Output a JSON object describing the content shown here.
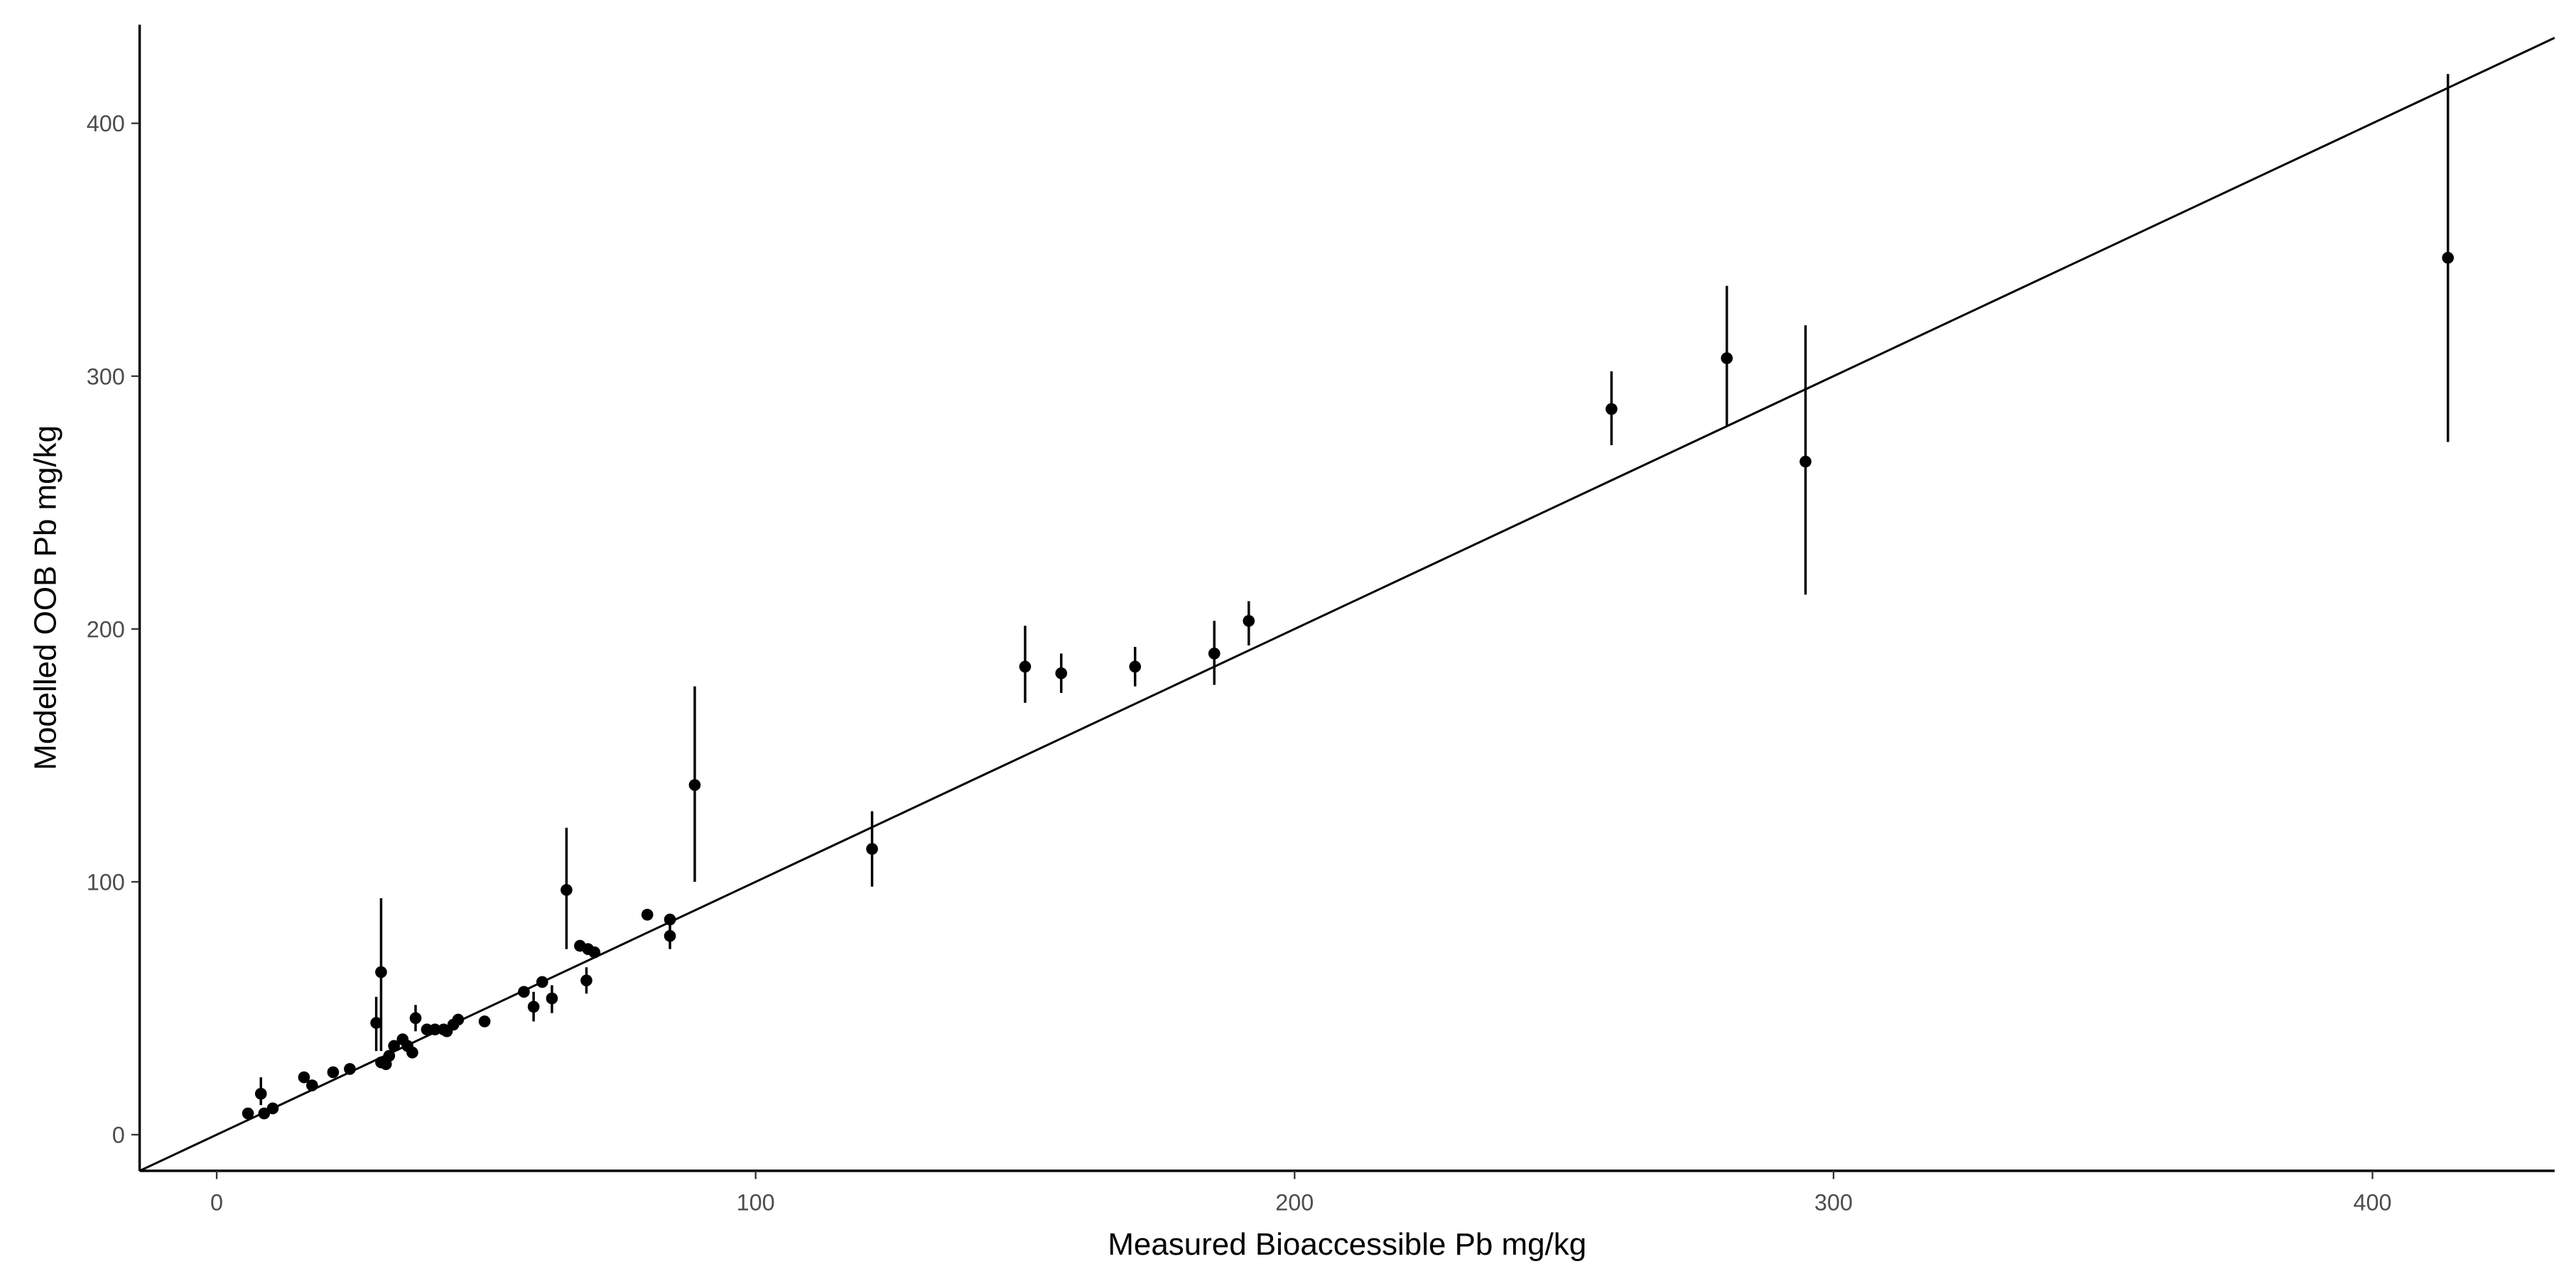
{
  "chart_data": {
    "type": "scatter",
    "x_label": "Measured Bioaccessible Pb mg/kg",
    "y_label": "Modelled OOB Pb mg/kg",
    "xlim": [
      -14.3,
      433.8
    ],
    "ylim": [
      -14.3,
      439
    ],
    "xticks": [
      0,
      100,
      200,
      300,
      400
    ],
    "yticks": [
      0,
      100,
      200,
      300,
      400
    ],
    "identity_line": true,
    "grid": false,
    "color": "#000000",
    "series": [
      {
        "x": [
          5.8,
          8.2,
          8.8,
          10.4,
          16.2,
          17.7,
          21.6,
          24.7,
          29.6,
          30.5,
          30.5,
          31.4,
          32,
          32.9,
          34.5,
          35.4,
          36.3,
          36.9,
          39,
          40.5,
          42.1,
          42.7,
          43.9,
          44.8,
          49.7,
          57,
          58.8,
          60.4,
          62.2,
          64.9,
          67.4,
          68.6,
          68.9,
          70.1,
          79.9,
          84.1,
          84.1,
          88.7,
          121.6,
          150,
          156.7,
          170.4,
          185.1,
          191.5,
          258.8,
          280.2,
          294.8,
          414
        ],
        "values": [
          8.4,
          16.2,
          8.4,
          10.4,
          22.7,
          19.5,
          24.7,
          26,
          44.2,
          64.3,
          28.6,
          27.9,
          31.2,
          35.1,
          37.7,
          35.1,
          32.5,
          46.1,
          41.6,
          41.6,
          41.6,
          40.9,
          43.5,
          45.5,
          44.8,
          56.5,
          50.6,
          60.4,
          53.9,
          96.8,
          74.7,
          61,
          73.4,
          72.1,
          87,
          85.1,
          78.6,
          138.3,
          113,
          185.1,
          182.5,
          185.1,
          190.3,
          203.2,
          287,
          307.1,
          266.2,
          346.8
        ],
        "error_low": [
          null,
          11.7,
          null,
          null,
          null,
          null,
          null,
          null,
          33.1,
          33.1,
          null,
          null,
          null,
          null,
          null,
          null,
          null,
          40.9,
          null,
          null,
          null,
          null,
          null,
          null,
          null,
          null,
          44.8,
          null,
          48.1,
          73.4,
          null,
          55.8,
          null,
          null,
          null,
          null,
          73.4,
          100,
          98.1,
          170.8,
          174.7,
          177.3,
          177.9,
          193.5,
          272.7,
          280.5,
          213.6,
          274
        ],
        "error_high": [
          null,
          22.7,
          null,
          null,
          null,
          null,
          null,
          null,
          54.5,
          93.5,
          null,
          null,
          null,
          null,
          null,
          null,
          null,
          51.3,
          null,
          null,
          null,
          null,
          null,
          null,
          null,
          null,
          56.5,
          null,
          59.1,
          121.4,
          null,
          66.2,
          null,
          null,
          null,
          null,
          83.1,
          177.3,
          127.9,
          201.3,
          190.3,
          192.9,
          203.2,
          211,
          301.9,
          335.7,
          320.1,
          419.5
        ]
      }
    ]
  }
}
